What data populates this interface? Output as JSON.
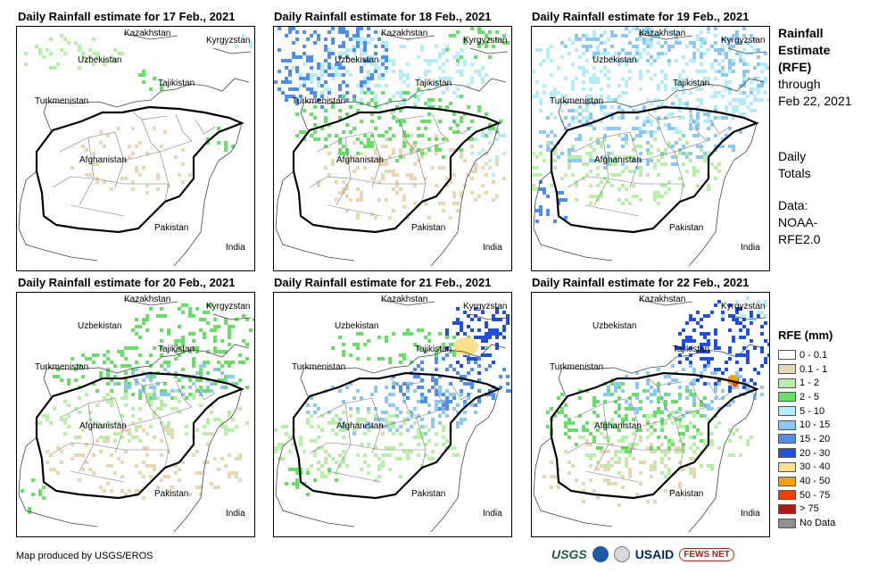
{
  "panels": [
    {
      "title": "Daily Rainfall estimate for 17 Feb., 2021"
    },
    {
      "title": "Daily Rainfall estimate for 18 Feb., 2021"
    },
    {
      "title": "Daily Rainfall estimate for 19 Feb., 2021"
    },
    {
      "title": "Daily Rainfall estimate for 20 Feb., 2021"
    },
    {
      "title": "Daily Rainfall estimate for 21 Feb., 2021"
    },
    {
      "title": "Daily Rainfall estimate for 22 Feb., 2021"
    }
  ],
  "map_labels": {
    "kazakhstan": "Kazakhstan",
    "kyrgyzstan": "Kyrgyzstan",
    "uzbekistan": "Uzbekistan",
    "tajikistan": "Tajikistan",
    "turkmenistan": "Turkmenistan",
    "afghanistan": "Afghanistan",
    "pakistan": "Pakistan",
    "india": "India"
  },
  "side_info": {
    "title_line1": "Rainfall",
    "title_line2": "Estimate",
    "title_line3": "(RFE)",
    "through": "through",
    "through_date": "Feb 22, 2021",
    "daily": "Daily",
    "totals": "Totals",
    "data_label": "Data:",
    "source_line1": "NOAA-",
    "source_line2": "RFE2.0"
  },
  "legend": {
    "title": "RFE (mm)",
    "items": [
      {
        "label": "0 - 0.1",
        "color": "#ffffff"
      },
      {
        "label": "0.1 - 1",
        "color": "#e8d6b4"
      },
      {
        "label": "1 - 2",
        "color": "#b8f0a8"
      },
      {
        "label": "2 - 5",
        "color": "#66e066"
      },
      {
        "label": "5 - 10",
        "color": "#b4ecf8"
      },
      {
        "label": "10 - 15",
        "color": "#8cc8f0"
      },
      {
        "label": "15 - 20",
        "color": "#4c8ff0"
      },
      {
        "label": "20 - 30",
        "color": "#1f4fe0"
      },
      {
        "label": "30 - 40",
        "color": "#f8e08c"
      },
      {
        "label": "40 - 50",
        "color": "#f8a000"
      },
      {
        "label": "50 - 75",
        "color": "#f04000"
      },
      {
        "label": "> 75",
        "color": "#b01818"
      },
      {
        "label": "No Data",
        "color": "#909090"
      }
    ]
  },
  "credit": "Map produced by USGS/EROS",
  "logos": {
    "usgs": "USGS",
    "usaid": "USAID",
    "fews": "FEWS NET"
  }
}
